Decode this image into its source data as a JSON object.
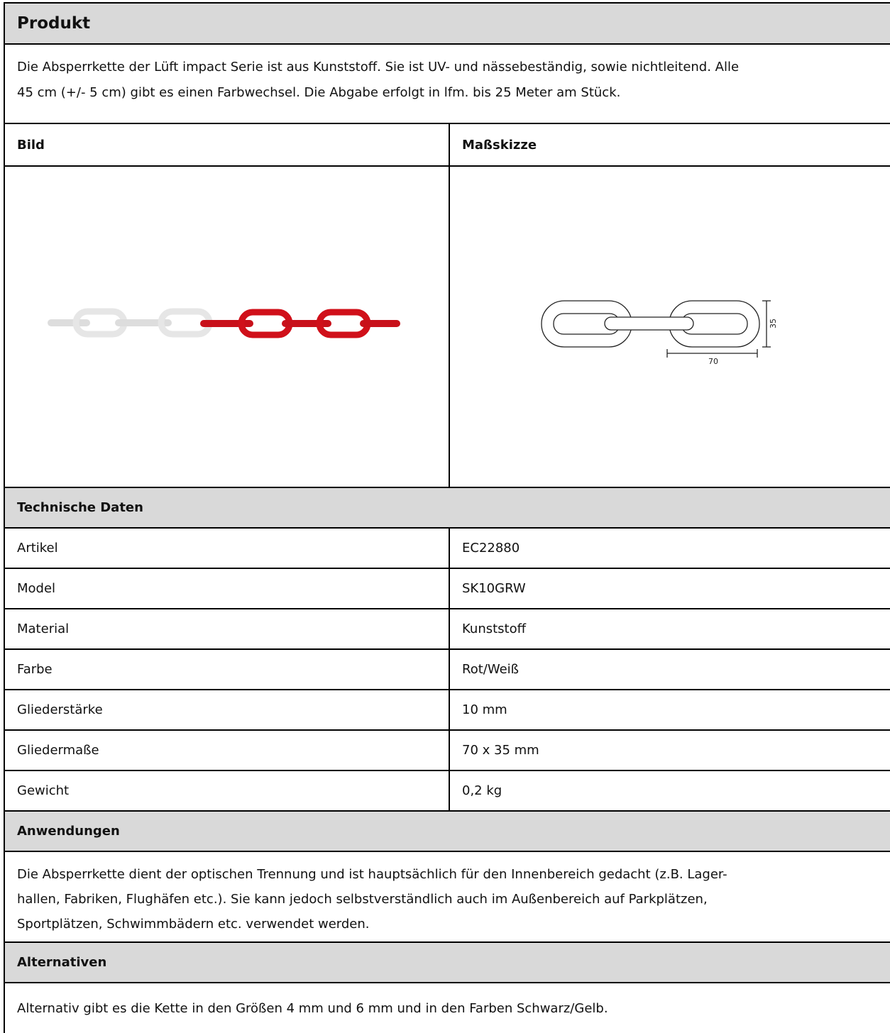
{
  "header": {
    "title": "Produkt"
  },
  "description": {
    "lines": [
      "Die Absperrkette der Lüft impact Serie ist aus Kunststoff. Sie ist UV- und nässebeständig, sowie nichtleitend. Alle",
      "45 cm (+/- 5 cm) gibt es einen Farbwechsel. Die Abgabe erfolgt in lfm. bis 25 Meter am Stück."
    ]
  },
  "images": {
    "headers": [
      "Bild",
      "Maßskizze"
    ],
    "sketch_labels": {
      "height": "35",
      "width": "70"
    }
  },
  "specs": {
    "title": "Technische Daten",
    "rows": [
      [
        "Artikel",
        "EC22880"
      ],
      [
        "Model",
        "SK10GRW"
      ],
      [
        "Material",
        "Kunststoff"
      ],
      [
        "Farbe",
        "Rot/Weiß"
      ],
      [
        "Gliederstärke",
        "10 mm"
      ],
      [
        "Gliedermaße",
        "70 x 35 mm"
      ],
      [
        "Gewicht",
        "0,2 kg"
      ]
    ]
  },
  "applications": {
    "title": "Anwendungen",
    "lines": [
      "Die Absperrkette dient der optischen Trennung und ist hauptsächlich für den Innenbereich gedacht (z.B. Lager-",
      "hallen, Fabriken, Flughäfen etc.). Sie kann jedoch selbstverständlich auch im Außenbereich auf Parkplätzen,",
      "Sportplätzen, Schwimmbädern etc. verwendet werden."
    ]
  },
  "alternatives": {
    "title": "Alternativen",
    "text": "Alternativ gibt es die Kette in den Größen 4 mm und 6 mm und in den Farben Schwarz/Gelb."
  }
}
